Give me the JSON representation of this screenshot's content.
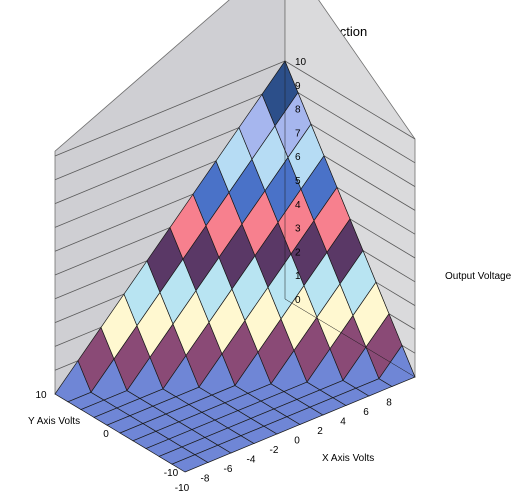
{
  "chart_data": {
    "type": "surface3d",
    "title": "Center Channel Function",
    "xlabel": "X Axis Volts",
    "ylabel": "Y Axis Volts",
    "zlabel": "Output Voltage",
    "x_ticks": [
      "-10",
      "-8",
      "-6",
      "-4",
      "-2",
      "0",
      "2",
      "4",
      "6",
      "8"
    ],
    "y_ticks": [
      "10",
      "0",
      "-10"
    ],
    "z_ticks": [
      "0",
      "1",
      "2",
      "3",
      "4",
      "5",
      "6",
      "7",
      "8",
      "9",
      "10"
    ],
    "xlim": [
      -10,
      10
    ],
    "ylim": [
      -10,
      10
    ],
    "zlim": [
      0,
      10
    ],
    "function": "z = max(0, (x + y) / 2)",
    "grid_x": [
      -10,
      -8,
      -6,
      -4,
      -2,
      0,
      2,
      4,
      6,
      8,
      10
    ],
    "grid_y": [
      -10,
      -8,
      -6,
      -4,
      -2,
      0,
      2,
      4,
      6,
      8,
      10
    ],
    "z_band_colors": [
      "#6f86d6",
      "#8a4a76",
      "#fff8d0",
      "#b8e4f2",
      "#5a3866",
      "#f7808e",
      "#4a72c8",
      "#b6dcf4",
      "#a6b6ee",
      "#2c4f8a",
      "#e0386c"
    ],
    "colors": {
      "floor": "#6f86d6",
      "wall": "#cfcfd3",
      "grid": "#5a5a5a",
      "edge": "#1a1a1a"
    }
  }
}
